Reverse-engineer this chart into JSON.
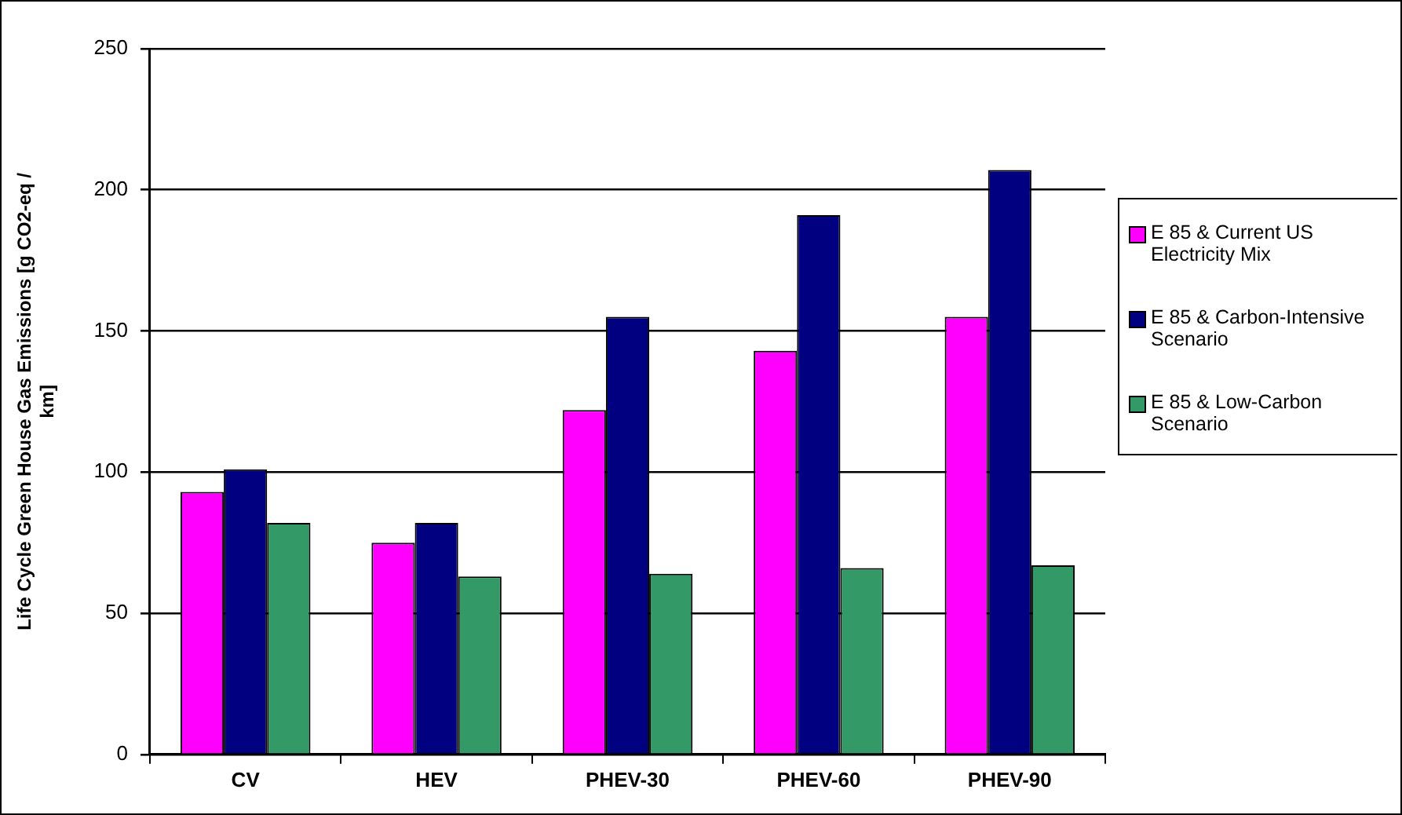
{
  "chart_data": {
    "type": "bar",
    "ylabel": "Life Cycle Green House Gas Emissions [g CO2-eq / km]",
    "categories": [
      "CV",
      "HEV",
      "PHEV-30",
      "PHEV-60",
      "PHEV-90"
    ],
    "series": [
      {
        "name": "E 85 & Current US Electricity Mix",
        "color": "#ff00ff",
        "values": [
          93,
          75,
          122,
          143,
          155
        ]
      },
      {
        "name": "E 85 & Carbon-Intensive Scenario",
        "color": "#000080",
        "values": [
          101,
          82,
          155,
          191,
          207
        ]
      },
      {
        "name": "E 85 & Low-Carbon Scenario",
        "color": "#339966",
        "values": [
          82,
          63,
          64,
          66,
          67
        ]
      }
    ],
    "ylim": [
      0,
      250
    ],
    "yticks": [
      0,
      50,
      100,
      150,
      200,
      250
    ],
    "grid": "y",
    "legend": "right"
  }
}
